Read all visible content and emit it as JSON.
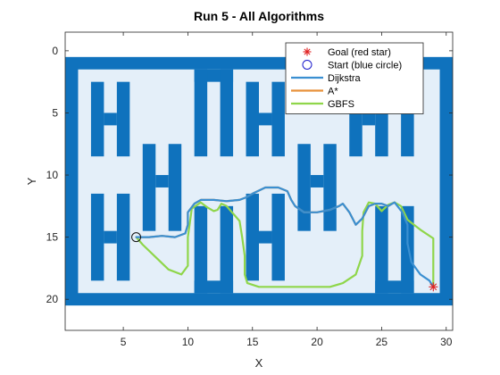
{
  "chart_data": {
    "type": "line",
    "title": "Run 5 - All Algorithms",
    "xlabel": "X",
    "ylabel": "Y",
    "xlim": [
      0.5,
      30.5
    ],
    "ylim": [
      -1.5,
      22.5
    ],
    "y_reversed": true,
    "xticks": [
      5,
      10,
      15,
      20,
      25,
      30
    ],
    "yticks": [
      0,
      5,
      10,
      15,
      20
    ],
    "grid": false,
    "legend_position": "top-right",
    "colors": {
      "wall": "#0f72bd",
      "free": "#e4eff9",
      "dijkstra": "#3a8fd1",
      "astar": "#e8913a",
      "gbfs": "#8fd64a",
      "goal": "#e02020",
      "start": "#1a1acc"
    },
    "map": {
      "grid_extent": [
        0.5,
        30.5,
        0.5,
        20.5
      ],
      "free_rect": [
        1.5,
        29.5,
        1.5,
        19.5
      ],
      "wall_rects": [
        [
          2.5,
          3.5,
          2.5,
          8.5
        ],
        [
          4.5,
          5.5,
          2.5,
          8.5
        ],
        [
          3.5,
          4.5,
          5.0,
          6.0
        ],
        [
          2.5,
          3.5,
          11.5,
          18.5
        ],
        [
          4.5,
          5.5,
          11.5,
          18.5
        ],
        [
          3.5,
          4.5,
          14.5,
          15.5
        ],
        [
          6.5,
          7.5,
          7.5,
          14.5
        ],
        [
          8.5,
          9.5,
          7.5,
          14.5
        ],
        [
          7.5,
          8.5,
          10.0,
          11.0
        ],
        [
          10.5,
          13.5,
          1.5,
          2.5
        ],
        [
          10.5,
          11.5,
          1.5,
          8.5
        ],
        [
          12.5,
          13.5,
          1.5,
          8.5
        ],
        [
          10.5,
          11.5,
          12.5,
          19.5
        ],
        [
          12.5,
          13.5,
          12.5,
          19.5
        ],
        [
          10.5,
          13.5,
          18.5,
          19.5
        ],
        [
          14.5,
          15.5,
          2.5,
          8.5
        ],
        [
          16.5,
          17.5,
          2.5,
          8.5
        ],
        [
          15.5,
          16.5,
          5.0,
          6.0
        ],
        [
          14.5,
          15.5,
          11.5,
          18.5
        ],
        [
          16.5,
          17.5,
          11.5,
          18.5
        ],
        [
          15.5,
          16.5,
          14.5,
          15.5
        ],
        [
          18.5,
          19.5,
          7.5,
          14.5
        ],
        [
          20.5,
          21.5,
          7.5,
          14.5
        ],
        [
          19.5,
          20.5,
          10.0,
          11.0
        ],
        [
          22.5,
          23.5,
          2.5,
          8.5
        ],
        [
          24.5,
          25.5,
          2.5,
          8.5
        ],
        [
          23.5,
          24.5,
          5.0,
          6.0
        ],
        [
          24.5,
          25.5,
          12.5,
          19.5
        ],
        [
          26.5,
          27.5,
          12.5,
          19.5
        ],
        [
          24.5,
          27.5,
          18.5,
          19.5
        ],
        [
          26.5,
          27.5,
          2.5,
          8.5
        ]
      ]
    },
    "start": [
      6,
      15
    ],
    "goal": [
      29,
      19
    ],
    "legend": [
      {
        "label": "Goal (red star)",
        "kind": "star"
      },
      {
        "label": "Start (blue circle)",
        "kind": "circle"
      },
      {
        "label": "Dijkstra",
        "kind": "line",
        "series": "dijkstra"
      },
      {
        "label": "A*",
        "kind": "line",
        "series": "astar"
      },
      {
        "label": "GBFS",
        "kind": "line",
        "series": "gbfs"
      }
    ],
    "series": [
      {
        "name": "Dijkstra",
        "key": "dijkstra",
        "x": [
          6,
          7,
          8,
          9,
          9.8,
          10,
          10,
          10.5,
          11,
          12,
          13,
          14,
          14.5,
          15,
          16,
          17,
          17.7,
          18,
          18.3,
          19,
          20,
          21,
          21.7,
          22,
          22.5,
          23,
          23.5,
          24,
          24.5,
          25,
          25.5,
          26,
          26.6,
          27,
          27,
          27.3,
          28,
          28.7,
          29
        ],
        "y": [
          15,
          15,
          14.9,
          15,
          14.7,
          14,
          13,
          12.3,
          12,
          12,
          12.1,
          12,
          11.8,
          11.5,
          11,
          11,
          11.3,
          12,
          12.5,
          13,
          13,
          12.8,
          12.5,
          12.3,
          13,
          14,
          13.5,
          12.5,
          12.3,
          12.3,
          12.5,
          12.2,
          13,
          14,
          15.5,
          17,
          18,
          18.5,
          19
        ]
      },
      {
        "name": "A*",
        "key": "astar",
        "x": [
          6,
          7,
          8,
          9,
          9.8,
          10,
          10,
          10.5,
          11,
          12,
          13,
          14,
          14.5,
          15,
          16,
          17,
          17.7,
          18,
          18.3,
          19,
          20,
          21,
          21.7,
          22,
          22.5,
          23,
          23.5,
          24,
          24.5,
          25,
          25.5,
          26
        ],
        "y": [
          15,
          15,
          14.9,
          15,
          14.7,
          14,
          13,
          12.3,
          12,
          12,
          12.1,
          12,
          11.8,
          11.5,
          11,
          11,
          11.3,
          12,
          12.5,
          13,
          13,
          12.8,
          12.5,
          12.3,
          13,
          14,
          13.5,
          12.5,
          12.3,
          12.3,
          12.5,
          12.2
        ]
      },
      {
        "name": "GBFS",
        "key": "gbfs",
        "x": [
          6,
          6.5,
          7.5,
          8.5,
          9.5,
          10,
          10,
          10.3,
          11,
          11.5,
          12,
          12.3,
          12.6,
          13,
          14,
          14.2,
          14.4,
          14.4,
          14.6,
          15.5,
          17,
          19,
          21,
          22,
          23,
          23.5,
          23.5,
          23.6,
          24,
          24.5,
          25,
          25.5,
          26,
          26.5,
          27,
          28,
          29,
          29
        ],
        "y": [
          15,
          15.6,
          16.6,
          17.6,
          18,
          17.3,
          15,
          12.7,
          12.2,
          12.6,
          12.9,
          12.8,
          12.3,
          12.5,
          13.7,
          15,
          16.5,
          18,
          18.7,
          19,
          19,
          19,
          19,
          18.7,
          18,
          16.5,
          14.5,
          13,
          12.2,
          12.3,
          12.9,
          12.4,
          12.2,
          12.5,
          13.6,
          14.4,
          15.1,
          19
        ]
      }
    ]
  }
}
